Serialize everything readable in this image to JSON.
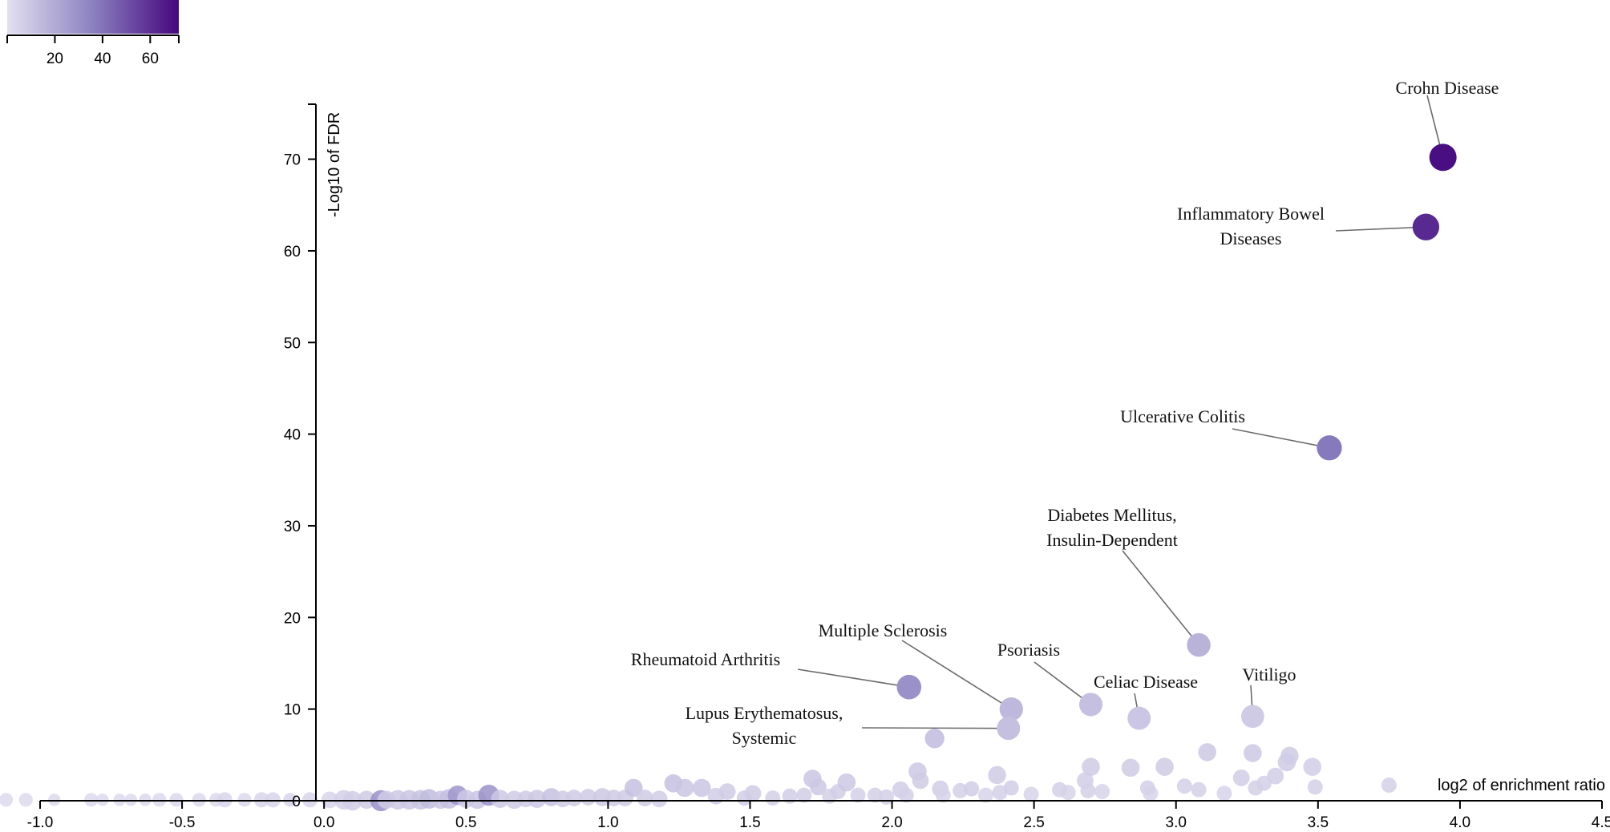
{
  "chart_data": {
    "type": "scatter",
    "title": "",
    "xlabel": "log2 of enrichment ratio",
    "ylabel": "-Log10 of FDR",
    "xlim": [
      -1.0,
      4.5
    ],
    "ylim": [
      0,
      76
    ],
    "x_ticks": [
      -1.0,
      -0.5,
      0.0,
      0.5,
      1.0,
      1.5,
      2.0,
      2.5,
      3.0,
      3.5,
      4.0,
      4.5
    ],
    "x_tick_labels": [
      "-1.0",
      "-0.5",
      "0.0",
      "0.5",
      "1.0",
      "1.5",
      "2.0",
      "2.5",
      "3.0",
      "3.5",
      "4.0",
      "4.5"
    ],
    "y_ticks": [
      0,
      10,
      20,
      30,
      40,
      50,
      60,
      70
    ],
    "y_tick_labels": [
      "0",
      "10",
      "20",
      "30",
      "40",
      "50",
      "60",
      "70"
    ],
    "colorbar": {
      "ticks": [
        20,
        40,
        60
      ],
      "tick_labels": [
        "20",
        "40",
        "60"
      ],
      "range": [
        0,
        72
      ],
      "color_low": "#e2e0f0",
      "color_mid": "#8b81c0",
      "color_high": "#45077d"
    },
    "labeled_points": [
      {
        "name": "Crohn Disease",
        "lines": [
          "Crohn Disease"
        ],
        "x": 3.94,
        "y": 70.2,
        "color_value": 70
      },
      {
        "name": "Inflammatory Bowel Diseases",
        "lines": [
          "Inflammatory Bowel",
          "Diseases"
        ],
        "x": 3.88,
        "y": 62.6,
        "color_value": 62
      },
      {
        "name": "Ulcerative Colitis",
        "lines": [
          "Ulcerative Colitis"
        ],
        "x": 3.54,
        "y": 38.5,
        "color_value": 38
      },
      {
        "name": "Diabetes Mellitus, Insulin-Dependent",
        "lines": [
          "Diabetes Mellitus,",
          "Insulin-Dependent"
        ],
        "x": 3.08,
        "y": 17.0,
        "color_value": 17
      },
      {
        "name": "Rheumatoid Arthritis",
        "lines": [
          "Rheumatoid Arthritis"
        ],
        "x": 2.06,
        "y": 12.4,
        "color_value": 30
      },
      {
        "name": "Multiple Sclerosis",
        "lines": [
          "Multiple Sclerosis"
        ],
        "x": 2.42,
        "y": 10.0,
        "color_value": 15
      },
      {
        "name": "Psoriasis",
        "lines": [
          "Psoriasis"
        ],
        "x": 2.7,
        "y": 10.5,
        "color_value": 12
      },
      {
        "name": "Celiac Disease",
        "lines": [
          "Celiac Disease"
        ],
        "x": 2.87,
        "y": 9.0,
        "color_value": 10
      },
      {
        "name": "Vitiligo",
        "lines": [
          "Vitiligo"
        ],
        "x": 3.27,
        "y": 9.2,
        "color_value": 8
      },
      {
        "name": "Lupus Erythematosus, Systemic",
        "lines": [
          "Lupus Erythematosus,",
          "Systemic"
        ],
        "x": 2.41,
        "y": 7.9,
        "color_value": 12
      }
    ],
    "background_points": [
      {
        "x": -1.12,
        "y": 0.1,
        "c": 2,
        "s": 0.4
      },
      {
        "x": -1.05,
        "y": 0.1,
        "c": 2,
        "s": 0.4
      },
      {
        "x": -0.95,
        "y": 0.1,
        "c": 2,
        "s": 0.3
      },
      {
        "x": -0.82,
        "y": 0.1,
        "c": 2,
        "s": 0.4
      },
      {
        "x": -0.78,
        "y": 0.1,
        "c": 2,
        "s": 0.3
      },
      {
        "x": -0.72,
        "y": 0.1,
        "c": 2,
        "s": 0.3
      },
      {
        "x": -0.68,
        "y": 0.1,
        "c": 2,
        "s": 0.3
      },
      {
        "x": -0.63,
        "y": 0.1,
        "c": 3,
        "s": 0.3
      },
      {
        "x": -0.58,
        "y": 0.1,
        "c": 3,
        "s": 0.4
      },
      {
        "x": -0.52,
        "y": 0.1,
        "c": 3,
        "s": 0.4
      },
      {
        "x": -0.44,
        "y": 0.1,
        "c": 3,
        "s": 0.4
      },
      {
        "x": -0.38,
        "y": 0.1,
        "c": 3,
        "s": 0.4
      },
      {
        "x": -0.35,
        "y": 0.1,
        "c": 4,
        "s": 0.5
      },
      {
        "x": -0.28,
        "y": 0.1,
        "c": 3,
        "s": 0.4
      },
      {
        "x": -0.22,
        "y": 0.1,
        "c": 4,
        "s": 0.5
      },
      {
        "x": -0.18,
        "y": 0.1,
        "c": 4,
        "s": 0.5
      },
      {
        "x": -0.12,
        "y": 0.1,
        "c": 4,
        "s": 0.4
      },
      {
        "x": -0.05,
        "y": 0.1,
        "c": 4,
        "s": 0.5
      },
      {
        "x": 0.02,
        "y": 0.1,
        "c": 4,
        "s": 0.6
      },
      {
        "x": 0.07,
        "y": 0.1,
        "c": 6,
        "s": 0.8
      },
      {
        "x": 0.1,
        "y": 0.0,
        "c": 7,
        "s": 0.8
      },
      {
        "x": 0.15,
        "y": 0.1,
        "c": 8,
        "s": 0.7
      },
      {
        "x": 0.2,
        "y": 0.0,
        "c": 30,
        "s": 0.9
      },
      {
        "x": 0.22,
        "y": 0.1,
        "c": 8,
        "s": 0.7
      },
      {
        "x": 0.26,
        "y": 0.1,
        "c": 9,
        "s": 0.8
      },
      {
        "x": 0.3,
        "y": 0.1,
        "c": 10,
        "s": 0.8
      },
      {
        "x": 0.34,
        "y": 0.1,
        "c": 11,
        "s": 0.8
      },
      {
        "x": 0.37,
        "y": 0.2,
        "c": 14,
        "s": 0.8
      },
      {
        "x": 0.41,
        "y": 0.1,
        "c": 10,
        "s": 0.7
      },
      {
        "x": 0.44,
        "y": 0.2,
        "c": 12,
        "s": 0.8
      },
      {
        "x": 0.47,
        "y": 0.6,
        "c": 28,
        "s": 0.8
      },
      {
        "x": 0.5,
        "y": 0.2,
        "c": 9,
        "s": 0.7
      },
      {
        "x": 0.54,
        "y": 0.1,
        "c": 10,
        "s": 0.7
      },
      {
        "x": 0.58,
        "y": 0.6,
        "c": 30,
        "s": 0.9
      },
      {
        "x": 0.62,
        "y": 0.2,
        "c": 9,
        "s": 0.7
      },
      {
        "x": 0.67,
        "y": 0.1,
        "c": 8,
        "s": 0.7
      },
      {
        "x": 0.71,
        "y": 0.2,
        "c": 8,
        "s": 0.6
      },
      {
        "x": 0.75,
        "y": 0.2,
        "c": 9,
        "s": 0.7
      },
      {
        "x": 0.8,
        "y": 0.4,
        "c": 12,
        "s": 0.7
      },
      {
        "x": 0.84,
        "y": 0.2,
        "c": 8,
        "s": 0.6
      },
      {
        "x": 0.88,
        "y": 0.3,
        "c": 8,
        "s": 0.6
      },
      {
        "x": 0.93,
        "y": 0.4,
        "c": 8,
        "s": 0.6
      },
      {
        "x": 0.98,
        "y": 0.4,
        "c": 9,
        "s": 0.7
      },
      {
        "x": 1.02,
        "y": 0.3,
        "c": 8,
        "s": 0.6
      },
      {
        "x": 1.06,
        "y": 0.3,
        "c": 8,
        "s": 0.6
      },
      {
        "x": 1.09,
        "y": 1.4,
        "c": 12,
        "s": 0.7
      },
      {
        "x": 1.13,
        "y": 0.3,
        "c": 8,
        "s": 0.6
      },
      {
        "x": 1.18,
        "y": 0.2,
        "c": 7,
        "s": 0.6
      },
      {
        "x": 1.23,
        "y": 1.9,
        "c": 12,
        "s": 0.7
      },
      {
        "x": 1.27,
        "y": 1.4,
        "c": 10,
        "s": 0.7
      },
      {
        "x": 1.33,
        "y": 1.4,
        "c": 10,
        "s": 0.7
      },
      {
        "x": 1.38,
        "y": 0.5,
        "c": 7,
        "s": 0.6
      },
      {
        "x": 1.42,
        "y": 1.0,
        "c": 8,
        "s": 0.6
      },
      {
        "x": 1.48,
        "y": 0.3,
        "c": 7,
        "s": 0.5
      },
      {
        "x": 1.51,
        "y": 0.8,
        "c": 8,
        "s": 0.6
      },
      {
        "x": 1.58,
        "y": 0.3,
        "c": 6,
        "s": 0.5
      },
      {
        "x": 1.64,
        "y": 0.5,
        "c": 7,
        "s": 0.5
      },
      {
        "x": 1.69,
        "y": 0.6,
        "c": 7,
        "s": 0.5
      },
      {
        "x": 1.72,
        "y": 2.4,
        "c": 10,
        "s": 0.7
      },
      {
        "x": 1.74,
        "y": 1.5,
        "c": 9,
        "s": 0.6
      },
      {
        "x": 1.78,
        "y": 0.5,
        "c": 6,
        "s": 0.5
      },
      {
        "x": 1.81,
        "y": 1.0,
        "c": 7,
        "s": 0.5
      },
      {
        "x": 1.84,
        "y": 2.0,
        "c": 9,
        "s": 0.7
      },
      {
        "x": 1.88,
        "y": 0.6,
        "c": 6,
        "s": 0.5
      },
      {
        "x": 1.94,
        "y": 0.6,
        "c": 6,
        "s": 0.5
      },
      {
        "x": 1.98,
        "y": 0.4,
        "c": 6,
        "s": 0.5
      },
      {
        "x": 2.03,
        "y": 1.2,
        "c": 7,
        "s": 0.6
      },
      {
        "x": 2.05,
        "y": 0.6,
        "c": 6,
        "s": 0.5
      },
      {
        "x": 2.09,
        "y": 3.2,
        "c": 9,
        "s": 0.7
      },
      {
        "x": 2.1,
        "y": 2.2,
        "c": 8,
        "s": 0.6
      },
      {
        "x": 2.15,
        "y": 6.8,
        "c": 14,
        "s": 0.8
      },
      {
        "x": 2.17,
        "y": 1.3,
        "c": 7,
        "s": 0.6
      },
      {
        "x": 2.18,
        "y": 0.6,
        "c": 5,
        "s": 0.5
      },
      {
        "x": 2.24,
        "y": 1.1,
        "c": 6,
        "s": 0.5
      },
      {
        "x": 2.28,
        "y": 1.3,
        "c": 7,
        "s": 0.5
      },
      {
        "x": 2.33,
        "y": 0.6,
        "c": 5,
        "s": 0.5
      },
      {
        "x": 2.37,
        "y": 2.8,
        "c": 8,
        "s": 0.7
      },
      {
        "x": 2.38,
        "y": 0.9,
        "c": 6,
        "s": 0.5
      },
      {
        "x": 2.42,
        "y": 1.4,
        "c": 7,
        "s": 0.5
      },
      {
        "x": 2.49,
        "y": 0.7,
        "c": 5,
        "s": 0.5
      },
      {
        "x": 2.59,
        "y": 1.2,
        "c": 6,
        "s": 0.5
      },
      {
        "x": 2.62,
        "y": 0.9,
        "c": 5,
        "s": 0.5
      },
      {
        "x": 2.68,
        "y": 2.2,
        "c": 7,
        "s": 0.6
      },
      {
        "x": 2.69,
        "y": 1.1,
        "c": 6,
        "s": 0.5
      },
      {
        "x": 2.7,
        "y": 3.7,
        "c": 8,
        "s": 0.7
      },
      {
        "x": 2.74,
        "y": 1.0,
        "c": 5,
        "s": 0.5
      },
      {
        "x": 2.84,
        "y": 3.6,
        "c": 8,
        "s": 0.7
      },
      {
        "x": 2.9,
        "y": 1.4,
        "c": 6,
        "s": 0.5
      },
      {
        "x": 2.91,
        "y": 0.8,
        "c": 5,
        "s": 0.5
      },
      {
        "x": 2.96,
        "y": 3.7,
        "c": 8,
        "s": 0.7
      },
      {
        "x": 3.03,
        "y": 1.6,
        "c": 6,
        "s": 0.5
      },
      {
        "x": 3.08,
        "y": 1.2,
        "c": 6,
        "s": 0.5
      },
      {
        "x": 3.11,
        "y": 5.3,
        "c": 9,
        "s": 0.7
      },
      {
        "x": 3.17,
        "y": 0.8,
        "c": 5,
        "s": 0.5
      },
      {
        "x": 3.23,
        "y": 2.5,
        "c": 7,
        "s": 0.6
      },
      {
        "x": 3.27,
        "y": 5.2,
        "c": 9,
        "s": 0.7
      },
      {
        "x": 3.28,
        "y": 1.4,
        "c": 6,
        "s": 0.5
      },
      {
        "x": 3.31,
        "y": 1.9,
        "c": 6,
        "s": 0.5
      },
      {
        "x": 3.35,
        "y": 2.7,
        "c": 7,
        "s": 0.6
      },
      {
        "x": 3.39,
        "y": 4.2,
        "c": 8,
        "s": 0.7
      },
      {
        "x": 3.4,
        "y": 4.9,
        "c": 8,
        "s": 0.7
      },
      {
        "x": 3.48,
        "y": 3.7,
        "c": 7,
        "s": 0.7
      },
      {
        "x": 3.49,
        "y": 1.5,
        "c": 6,
        "s": 0.5
      },
      {
        "x": 3.75,
        "y": 1.7,
        "c": 6,
        "s": 0.5
      }
    ]
  }
}
